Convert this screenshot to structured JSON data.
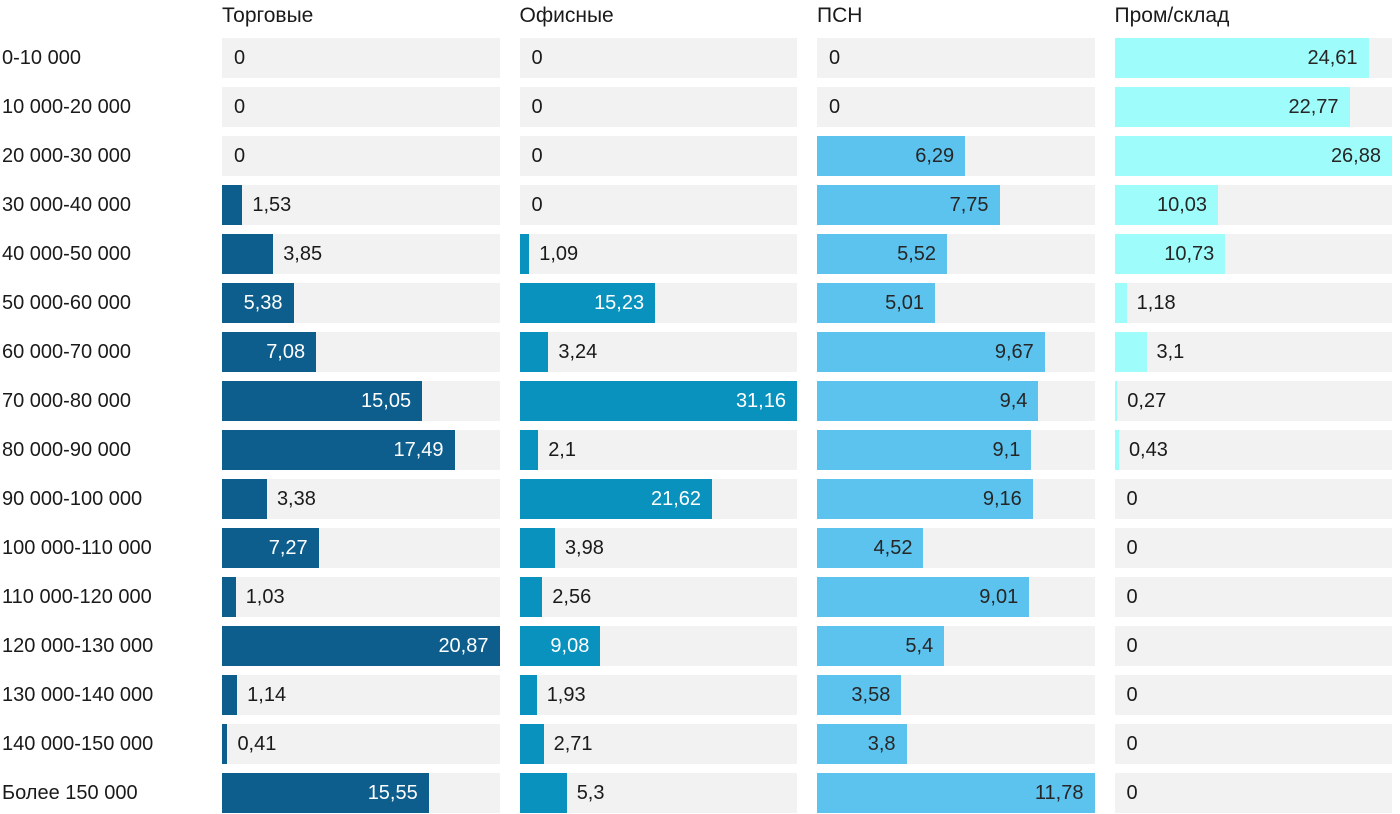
{
  "chart_data": {
    "type": "bar",
    "orientation": "horizontal",
    "title": "",
    "xlabel": "",
    "ylabel": "",
    "legend_position": "top-as-column-headers",
    "grid": false,
    "normalization": "each column scaled to its own maximum value",
    "background_color": "#ffffff",
    "track_color": "#f2f2f2",
    "text_color": "#1a1a1a",
    "categories": [
      "0-10 000",
      "10 000-20 000",
      "20 000-30 000",
      "30 000-40 000",
      "40 000-50 000",
      "50 000-60 000",
      "60 000-70 000",
      "70 000-80 000",
      "80 000-90 000",
      "90 000-100 000",
      "100 000-110 000",
      "110 000-120 000",
      "120 000-130 000",
      "130 000-140 000",
      "140 000-150 000",
      "Более 150 000"
    ],
    "series": [
      {
        "name": "Торговые",
        "color": "#0d5e8c",
        "inside_label_color": "#ffffff",
        "values": [
          0,
          0,
          0,
          1.53,
          3.85,
          5.38,
          7.08,
          15.05,
          17.49,
          3.38,
          7.27,
          1.03,
          20.87,
          1.14,
          0.41,
          15.55
        ],
        "display_values": [
          "0",
          "0",
          "0",
          "1,53",
          "3,85",
          "5,38",
          "7,08",
          "15,05",
          "17,49",
          "3,38",
          "7,27",
          "1,03",
          "20,87",
          "1,14",
          "0,41",
          "15,55"
        ]
      },
      {
        "name": "Офисные",
        "color": "#0a92be",
        "inside_label_color": "#ffffff",
        "values": [
          0,
          0,
          0,
          0,
          1.09,
          15.23,
          3.24,
          31.16,
          2.1,
          21.62,
          3.98,
          2.56,
          9.08,
          1.93,
          2.71,
          5.3
        ],
        "display_values": [
          "0",
          "0",
          "0",
          "0",
          "1,09",
          "15,23",
          "3,24",
          "31,16",
          "2,1",
          "21,62",
          "3,98",
          "2,56",
          "9,08",
          "1,93",
          "2,71",
          "5,3"
        ]
      },
      {
        "name": "ПСН",
        "color": "#5cc3ef",
        "inside_label_color": "#262626",
        "values": [
          0,
          0,
          6.29,
          7.75,
          5.52,
          5.01,
          9.67,
          9.4,
          9.1,
          9.16,
          4.52,
          9.01,
          5.4,
          3.58,
          3.8,
          11.78
        ],
        "display_values": [
          "0",
          "0",
          "6,29",
          "7,75",
          "5,52",
          "5,01",
          "9,67",
          "9,4",
          "9,1",
          "9,16",
          "4,52",
          "9,01",
          "5,4",
          "3,58",
          "3,8",
          "11,78"
        ]
      },
      {
        "name": "Пром/склад",
        "color": "#9efcfa",
        "inside_label_color": "#262626",
        "values": [
          24.61,
          22.77,
          26.88,
          10.03,
          10.73,
          1.18,
          3.1,
          0.27,
          0.43,
          0,
          0,
          0,
          0,
          0,
          0,
          0
        ],
        "display_values": [
          "24,61",
          "22,77",
          "26,88",
          "10,03",
          "10,73",
          "1,18",
          "3,1",
          "0,27",
          "0,43",
          "0",
          "0",
          "0",
          "0",
          "0",
          "0",
          "0"
        ]
      }
    ]
  }
}
